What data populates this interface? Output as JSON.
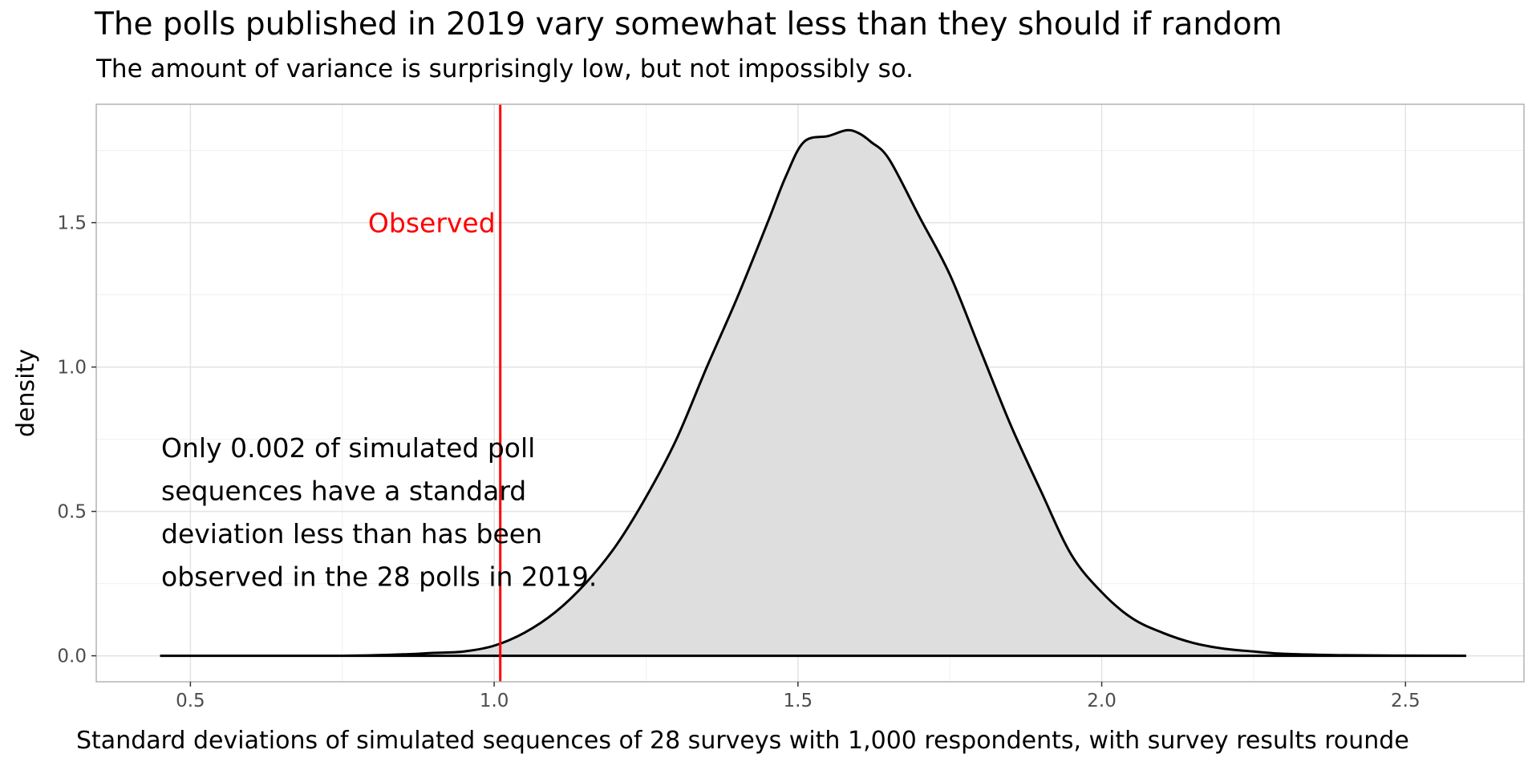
{
  "title": "The polls published in 2019 vary somewhat less than they should if random",
  "subtitle": "The amount of variance is surprisingly low, but not impossibly so.",
  "chart_data": {
    "type": "area",
    "xlabel": "Standard deviations of simulated sequences of 28 surveys with 1,000 respondents, with survey results rounde",
    "ylabel": "density",
    "xlim": [
      0.345,
      2.695
    ],
    "ylim": [
      -0.09,
      1.91
    ],
    "x_ticks": [
      0.5,
      1.0,
      1.5,
      2.0,
      2.5
    ],
    "x_tick_labels": [
      "0.5",
      "1.0",
      "1.5",
      "2.0",
      "2.5"
    ],
    "y_ticks": [
      0.0,
      0.5,
      1.0,
      1.5
    ],
    "y_tick_labels": [
      "0.0",
      "0.5",
      "1.0",
      "1.5"
    ],
    "grid": true,
    "series": [
      {
        "x": [
          0.45,
          0.6,
          0.75,
          0.85,
          0.9,
          0.95,
          1.0,
          1.05,
          1.1,
          1.15,
          1.2,
          1.25,
          1.3,
          1.35,
          1.4,
          1.45,
          1.48,
          1.51,
          1.55,
          1.58,
          1.6,
          1.62,
          1.65,
          1.7,
          1.75,
          1.8,
          1.85,
          1.9,
          1.95,
          2.0,
          2.05,
          2.1,
          2.15,
          2.2,
          2.25,
          2.3,
          2.4,
          2.5,
          2.6
        ],
        "y": [
          0.0,
          0.0,
          0.0,
          0.005,
          0.01,
          0.015,
          0.035,
          0.08,
          0.15,
          0.25,
          0.38,
          0.55,
          0.75,
          1.0,
          1.24,
          1.5,
          1.66,
          1.78,
          1.8,
          1.82,
          1.81,
          1.78,
          1.72,
          1.52,
          1.32,
          1.06,
          0.8,
          0.57,
          0.35,
          0.22,
          0.13,
          0.08,
          0.045,
          0.025,
          0.015,
          0.007,
          0.002,
          0.0005,
          0.0
        ]
      }
    ],
    "colors": {
      "fill": "#dedede",
      "line": "#000000",
      "observed": "#ff0000"
    },
    "observed_x": 1.01,
    "observed_label": "Observed",
    "annotation": {
      "lines": [
        "Only 0.002 of simulated poll",
        "sequences have a standard",
        "deviation less than has been",
        "observed in the 28 polls in 2019."
      ]
    }
  }
}
